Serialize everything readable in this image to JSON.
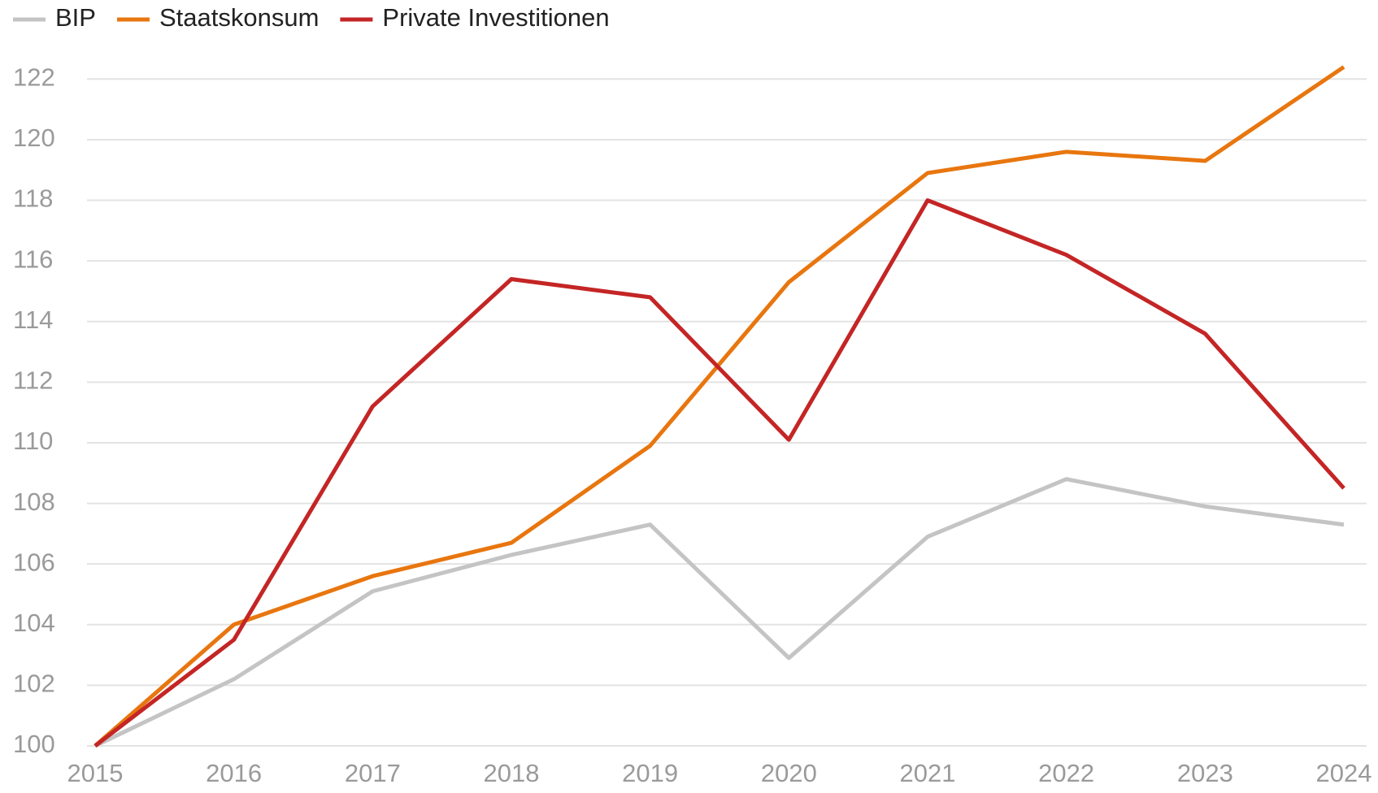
{
  "chart_data": {
    "type": "line",
    "x": [
      2015,
      2016,
      2017,
      2018,
      2019,
      2020,
      2021,
      2022,
      2023,
      2024
    ],
    "series": [
      {
        "name": "BIP",
        "color": "#c4c4c4",
        "values": [
          100,
          102.2,
          105.1,
          106.3,
          107.3,
          102.9,
          106.9,
          108.8,
          107.9,
          107.3
        ]
      },
      {
        "name": "Staatskonsum",
        "color": "#e8760f",
        "values": [
          100,
          104.0,
          105.6,
          106.7,
          109.9,
          115.3,
          118.9,
          119.6,
          119.3,
          122.4
        ]
      },
      {
        "name": "Private Investitionen",
        "color": "#c42525",
        "values": [
          100,
          103.5,
          111.2,
          115.4,
          114.8,
          110.1,
          118.0,
          116.2,
          113.6,
          108.5
        ]
      }
    ],
    "xlim": [
      2015,
      2024
    ],
    "xticks": [
      2015,
      2016,
      2017,
      2018,
      2019,
      2020,
      2021,
      2022,
      2023,
      2024
    ],
    "ylim": [
      100,
      123
    ],
    "yticks": [
      100,
      102,
      104,
      106,
      108,
      110,
      112,
      114,
      116,
      118,
      120,
      122
    ],
    "grid": true,
    "legend": "top-left"
  }
}
